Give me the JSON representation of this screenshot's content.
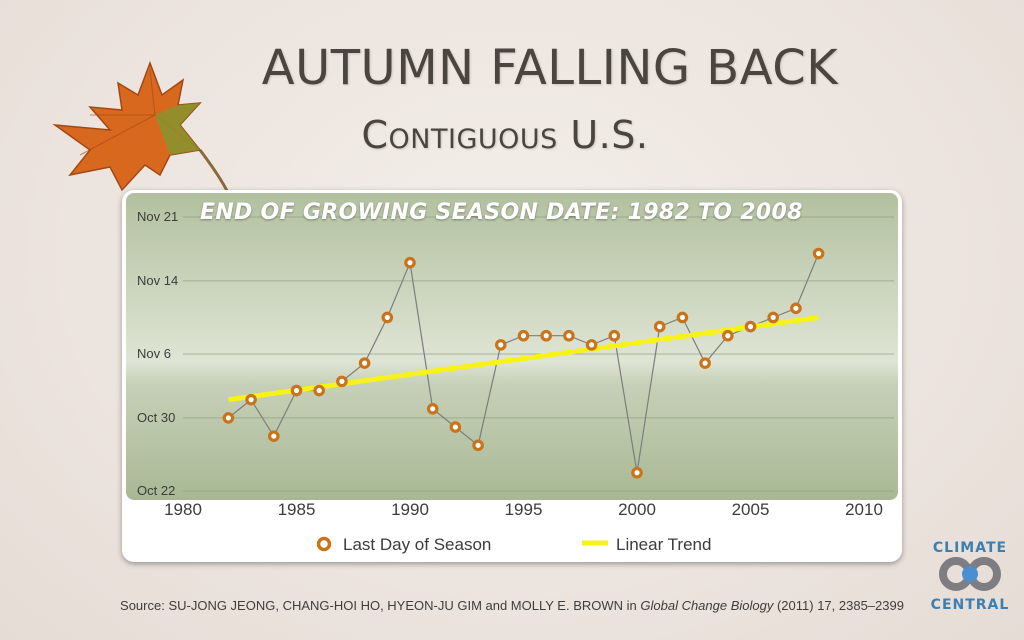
{
  "title": "AUTUMN FALLING BACK",
  "subtitle": "Contiguous U.S.",
  "source": {
    "prefix": "Source: SU-JONG JEONG, CHANG-HOI HO, HYEON-JU GIM and MOLLY E. BROWN in ",
    "journal": "Global Change Biology",
    "suffix": " (2011) 17, 2385–2399"
  },
  "logo": {
    "line1": "CLIMATE",
    "line2": "CENTRAL"
  },
  "colors": {
    "marker": "#c9741a",
    "trend": "#f6f21a",
    "line": "#7d7d7d",
    "text": "#4a4541"
  },
  "chart_data": {
    "type": "line",
    "title": "END OF GROWING SEASON DATE: 1982 TO 2008",
    "xlim": [
      1980,
      2010
    ],
    "x_ticks": [
      1980,
      1985,
      1990,
      1995,
      2000,
      2005,
      2010
    ],
    "ylim": [
      "Oct 22",
      "Nov 21"
    ],
    "y_ticks": [
      "Oct 22",
      "Oct 30",
      "Nov 6",
      "Nov 14",
      "Nov 21"
    ],
    "grid": true,
    "legend": "bottom",
    "series": [
      {
        "name": "Last Day of Season",
        "x": [
          1982,
          1983,
          1984,
          1985,
          1986,
          1987,
          1988,
          1989,
          1990,
          1991,
          1992,
          1993,
          1994,
          1995,
          1996,
          1997,
          1998,
          1999,
          2000,
          2001,
          2002,
          2003,
          2004,
          2005,
          2006,
          2007,
          2008
        ],
        "y": [
          "Oct 30",
          "Nov 1",
          "Oct 28",
          "Nov 2",
          "Nov 2",
          "Nov 3",
          "Nov 5",
          "Nov 10",
          "Nov 16",
          "Oct 31",
          "Oct 29",
          "Oct 27",
          "Nov 7",
          "Nov 8",
          "Nov 8",
          "Nov 8",
          "Nov 7",
          "Nov 8",
          "Oct 24",
          "Nov 9",
          "Nov 10",
          "Nov 5",
          "Nov 8",
          "Nov 9",
          "Nov 10",
          "Nov 11",
          "Nov 17"
        ]
      },
      {
        "name": "Linear Trend",
        "x": [
          1982,
          2008
        ],
        "y": [
          "Nov 1",
          "Nov 10"
        ]
      }
    ]
  }
}
